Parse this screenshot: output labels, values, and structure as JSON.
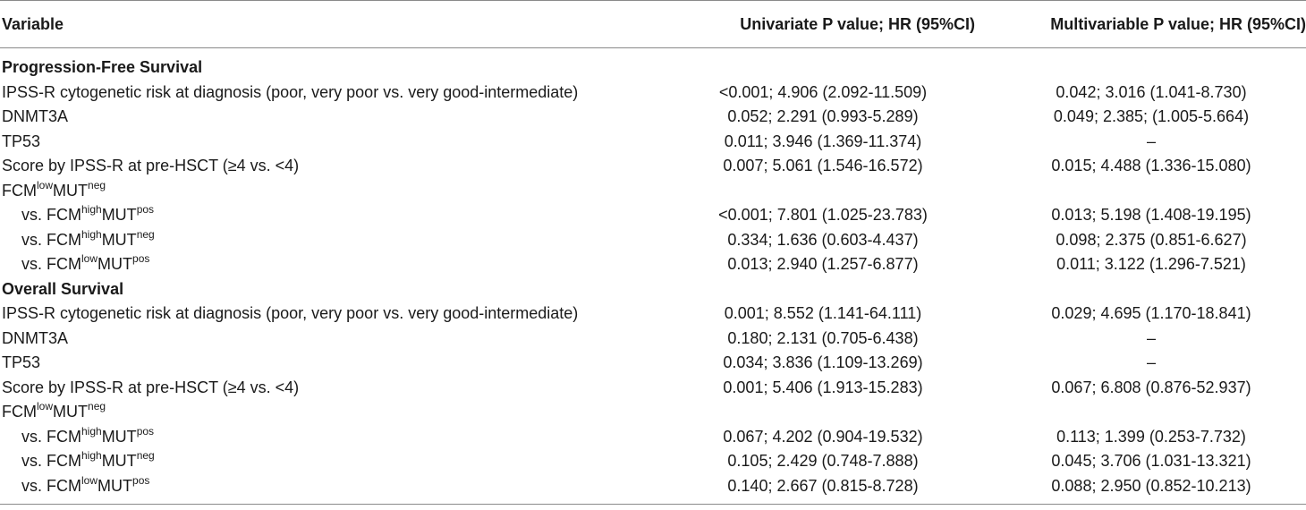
{
  "headers": {
    "variable": "Variable",
    "univariate": "Univariate P value; HR (95%CI)",
    "multivariable": "Multivariable P value; HR (95%CI)"
  },
  "pfs": {
    "title": "Progression-Free Survival",
    "rows": [
      {
        "label": "IPSS-R cytogenetic risk at diagnosis (poor, very poor vs. very good-intermediate)",
        "uni": "<0.001; 4.906 (2.092-11.509)",
        "multi": "0.042; 3.016 (1.041-8.730)"
      },
      {
        "label": "DNMT3A",
        "uni": "0.052; 2.291 (0.993-5.289)",
        "multi": "0.049; 2.385; (1.005-5.664)"
      },
      {
        "label": "TP53",
        "uni": "0.011; 3.946 (1.369-11.374)",
        "multi": "–"
      },
      {
        "label": "Score by IPSS-R at pre-HSCT (≥4 vs. <4)",
        "uni": "0.007; 5.061 (1.546-16.572)",
        "multi": "0.015; 4.488 (1.336-15.080)"
      }
    ],
    "fcm_ref": {
      "base": "FCM",
      "sup1": "low",
      "mid": "MUT",
      "sup2": "neg"
    },
    "sub_rows": [
      {
        "prefix": "vs. FCM",
        "sup1": "high",
        "mid": "MUT",
        "sup2": "pos",
        "uni": "<0.001; 7.801 (1.025-23.783)",
        "multi": "0.013; 5.198 (1.408-19.195)"
      },
      {
        "prefix": "vs. FCM",
        "sup1": "high",
        "mid": "MUT",
        "sup2": "neg",
        "uni": "0.334; 1.636 (0.603-4.437)",
        "multi": "0.098; 2.375 (0.851-6.627)"
      },
      {
        "prefix": "vs. FCM",
        "sup1": "low",
        "mid": "MUT",
        "sup2": "pos",
        "uni": "0.013; 2.940 (1.257-6.877)",
        "multi": "0.011; 3.122 (1.296-7.521)"
      }
    ]
  },
  "os": {
    "title": "Overall Survival",
    "rows": [
      {
        "label": "IPSS-R cytogenetic risk at diagnosis (poor, very poor vs. very good-intermediate)",
        "uni": "0.001; 8.552 (1.141-64.111)",
        "multi": "0.029; 4.695 (1.170-18.841)"
      },
      {
        "label": "DNMT3A",
        "uni": "0.180; 2.131 (0.705-6.438)",
        "multi": "–"
      },
      {
        "label": "TP53",
        "uni": "0.034; 3.836 (1.109-13.269)",
        "multi": "–"
      },
      {
        "label": "Score by IPSS-R at pre-HSCT (≥4 vs. <4)",
        "uni": "0.001; 5.406 (1.913-15.283)",
        "multi": "0.067; 6.808 (0.876-52.937)"
      }
    ],
    "fcm_ref": {
      "base": "FCM",
      "sup1": "low",
      "mid": "MUT",
      "sup2": "neg"
    },
    "sub_rows": [
      {
        "prefix": "vs. FCM",
        "sup1": "high",
        "mid": "MUT",
        "sup2": "pos",
        "uni": "0.067; 4.202 (0.904-19.532)",
        "multi": "0.113; 1.399 (0.253-7.732)"
      },
      {
        "prefix": "vs. FCM",
        "sup1": "high",
        "mid": "MUT",
        "sup2": "neg",
        "uni": "0.105; 2.429 (0.748-7.888)",
        "multi": "0.045; 3.706 (1.031-13.321)"
      },
      {
        "prefix": "vs. FCM",
        "sup1": "low",
        "mid": "MUT",
        "sup2": "pos",
        "uni": "0.140; 2.667 (0.815-8.728)",
        "multi": "0.088; 2.950 (0.852-10.213)"
      }
    ]
  }
}
